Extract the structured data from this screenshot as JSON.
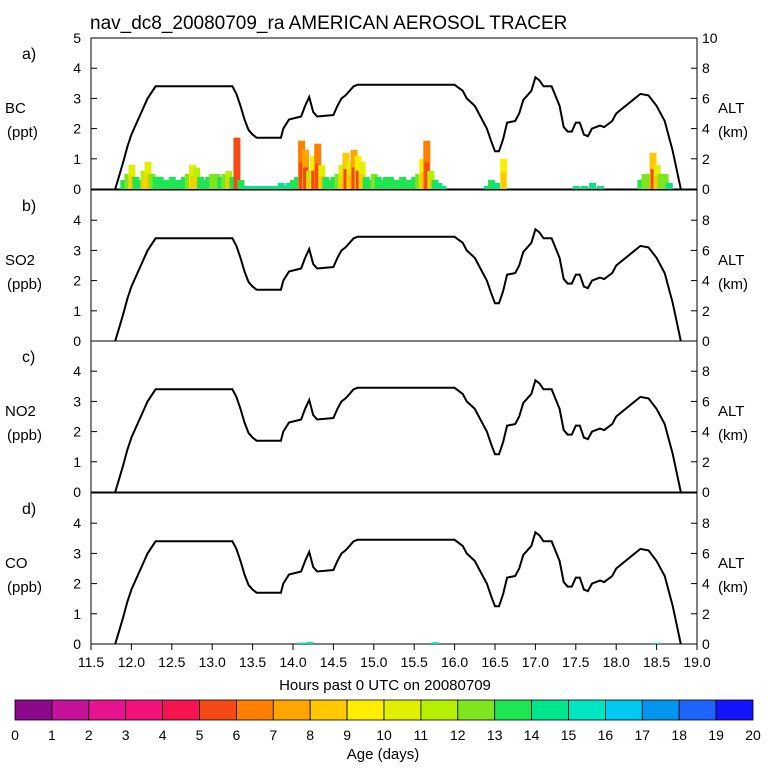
{
  "title": "nav_dc8_20080709_ra AMERICAN AEROSOL TRACER",
  "panels": [
    {
      "id": "a",
      "label": "a)",
      "species": "BC",
      "unit": "(ppt)",
      "tracer": "bc"
    },
    {
      "id": "b",
      "label": "b)",
      "species": "SO2",
      "unit": "(ppb)",
      "tracer": "none"
    },
    {
      "id": "c",
      "label": "c)",
      "species": "NO2",
      "unit": "(ppb)",
      "tracer": "none"
    },
    {
      "id": "d",
      "label": "d)",
      "species": "CO",
      "unit": "(ppb)",
      "tracer": "co"
    }
  ],
  "right_axis": {
    "label": "ALT",
    "unit": "(km)"
  },
  "x_axis": {
    "label": "Hours past 0 UTC on 20080709",
    "range": [
      11.5,
      19.0
    ],
    "ticks": [
      "11.5",
      "12.0",
      "12.5",
      "13.0",
      "13.5",
      "14.0",
      "14.5",
      "15.0",
      "15.5",
      "16.0",
      "16.5",
      "17.0",
      "17.5",
      "18.0",
      "18.5",
      "19.0"
    ]
  },
  "colorbar": {
    "label": "Age (days)",
    "ticks": [
      "0",
      "1",
      "2",
      "3",
      "4",
      "5",
      "6",
      "7",
      "8",
      "9",
      "10",
      "11",
      "12",
      "13",
      "14",
      "15",
      "16",
      "17",
      "18",
      "19",
      "20"
    ],
    "colors": [
      "#8b0a8b",
      "#c4129a",
      "#e8138f",
      "#f2127a",
      "#f51450",
      "#f54a14",
      "#ff7f00",
      "#ffa500",
      "#ffc800",
      "#ffee00",
      "#e1f000",
      "#b4f000",
      "#7ee61e",
      "#1ee650",
      "#00e68c",
      "#00e6c3",
      "#00c8f0",
      "#0096f0",
      "#1e64ff",
      "#1414ff",
      "#6414f0"
    ]
  },
  "chart_data": {
    "type": "line",
    "x_range": [
      11.5,
      19.0
    ],
    "left_axis": {
      "range": [
        0,
        5
      ],
      "ticks": [
        0,
        1,
        2,
        3,
        4,
        5
      ]
    },
    "right_axis": {
      "range": [
        0,
        10
      ],
      "ticks": [
        0,
        2,
        4,
        6,
        8,
        10
      ]
    },
    "altitude_series": {
      "name": "ALT (km)",
      "x": [
        11.8,
        11.85,
        11.9,
        11.95,
        12.0,
        12.05,
        12.1,
        12.2,
        12.3,
        13.25,
        13.3,
        13.35,
        13.4,
        13.45,
        13.5,
        13.55,
        13.85,
        13.88,
        13.95,
        14.1,
        14.15,
        14.2,
        14.25,
        14.3,
        14.5,
        14.55,
        14.6,
        14.65,
        14.7,
        14.75,
        14.8,
        14.85,
        15.0,
        15.25,
        15.5,
        15.75,
        16.0,
        16.1,
        16.15,
        16.25,
        16.4,
        16.45,
        16.5,
        16.55,
        16.6,
        16.65,
        16.75,
        16.8,
        16.85,
        16.9,
        16.95,
        17.0,
        17.05,
        17.1,
        17.2,
        17.3,
        17.35,
        17.4,
        17.45,
        17.5,
        17.55,
        17.6,
        17.65,
        17.7,
        17.8,
        17.85,
        17.95,
        18.0,
        18.3,
        18.4,
        18.5,
        18.6,
        18.7,
        18.8
      ],
      "y": [
        0,
        0.9,
        1.8,
        2.8,
        3.6,
        4.2,
        4.8,
        6.0,
        6.8,
        6.8,
        6.3,
        5.5,
        4.6,
        3.9,
        3.6,
        3.4,
        3.4,
        4.0,
        4.6,
        4.8,
        5.5,
        6.1,
        5.1,
        4.8,
        4.9,
        5.5,
        6.0,
        6.2,
        6.5,
        6.8,
        6.9,
        6.9,
        6.9,
        6.9,
        6.9,
        6.9,
        6.9,
        6.5,
        6.0,
        5.5,
        4.0,
        3.2,
        2.5,
        2.5,
        3.3,
        4.4,
        4.5,
        5.0,
        5.9,
        6.2,
        6.5,
        7.4,
        7.2,
        6.8,
        6.8,
        5.5,
        4.1,
        3.8,
        3.8,
        4.4,
        4.4,
        3.6,
        3.5,
        4.0,
        4.2,
        4.1,
        4.5,
        5.0,
        6.3,
        6.2,
        5.5,
        4.5,
        2.5,
        0
      ]
    },
    "bc_tracer": {
      "name": "BC (ppt)",
      "x": [
        11.9,
        11.95,
        12.0,
        12.05,
        12.1,
        12.15,
        12.2,
        12.25,
        12.3,
        12.35,
        12.4,
        12.45,
        12.5,
        12.55,
        12.6,
        12.65,
        12.7,
        12.75,
        12.8,
        12.85,
        12.9,
        12.95,
        13.0,
        13.05,
        13.1,
        13.15,
        13.2,
        13.25,
        13.3,
        13.35,
        13.4,
        13.45,
        13.5,
        13.55,
        13.6,
        13.65,
        13.7,
        13.75,
        13.8,
        13.85,
        13.9,
        13.95,
        14.0,
        14.05,
        14.1,
        14.15,
        14.2,
        14.25,
        14.3,
        14.35,
        14.4,
        14.45,
        14.5,
        14.55,
        14.6,
        14.65,
        14.7,
        14.75,
        14.8,
        14.85,
        14.9,
        14.95,
        15.0,
        15.05,
        15.1,
        15.15,
        15.2,
        15.25,
        15.3,
        15.35,
        15.4,
        15.45,
        15.5,
        15.55,
        15.6,
        15.65,
        15.7,
        15.75,
        15.8,
        15.85,
        16.4,
        16.45,
        16.5,
        16.55,
        16.6,
        17.5,
        17.6,
        17.7,
        17.8,
        18.3,
        18.35,
        18.4,
        18.45,
        18.5,
        18.55,
        18.6,
        18.65
      ],
      "y": [
        0.3,
        0.5,
        0.8,
        0.4,
        0.3,
        0.6,
        0.9,
        0.5,
        0.4,
        0.4,
        0.3,
        0.3,
        0.4,
        0.3,
        0.3,
        0.4,
        0.5,
        0.8,
        0.7,
        0.4,
        0.3,
        0.4,
        0.5,
        0.5,
        0.4,
        0.5,
        0.6,
        0.4,
        1.7,
        0.3,
        0.1,
        0.1,
        0.1,
        0.1,
        0.1,
        0.1,
        0.1,
        0.1,
        0.1,
        0.2,
        0.1,
        0.2,
        0.3,
        0.4,
        1.6,
        1.3,
        0.6,
        1.1,
        1.5,
        0.8,
        0.4,
        0.3,
        0.4,
        0.5,
        0.8,
        1.2,
        0.9,
        1.3,
        1.1,
        0.9,
        0.4,
        0.3,
        0.5,
        0.4,
        0.3,
        0.4,
        0.4,
        0.3,
        0.3,
        0.4,
        0.3,
        0.3,
        0.4,
        0.5,
        1.0,
        1.6,
        0.6,
        0.3,
        0.2,
        0.1,
        0.1,
        0.3,
        0.2,
        0.2,
        1.0,
        0.1,
        0.1,
        0.2,
        0.1,
        0.3,
        0.5,
        0.5,
        1.2,
        0.8,
        0.5,
        0.5,
        0.2
      ]
    },
    "co_tracer": {
      "name": "CO (ppb)",
      "x": [
        14.1,
        14.2,
        15.75,
        18.5
      ],
      "y": [
        0.05,
        0.07,
        0.06,
        0.04
      ]
    }
  }
}
